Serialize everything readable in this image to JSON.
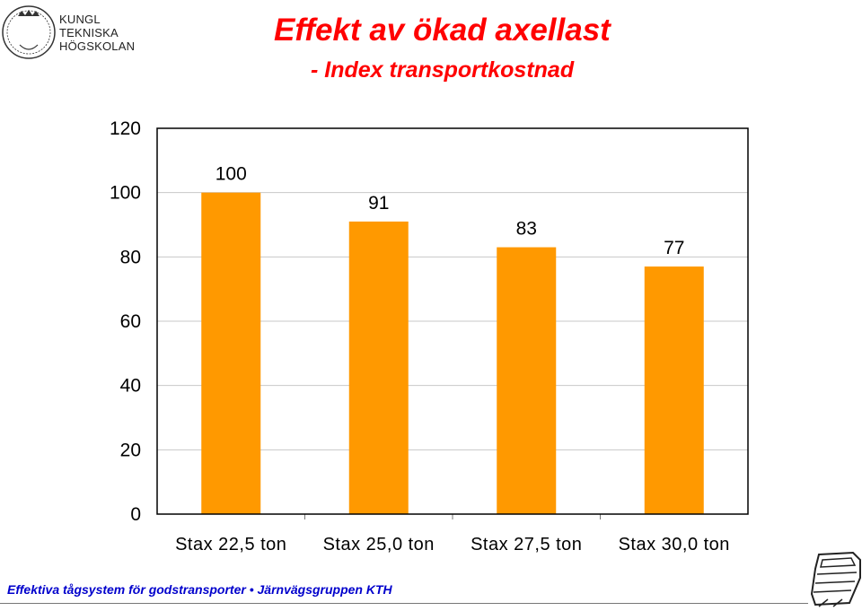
{
  "logo": {
    "seal_text": "VETENSKAP OCH KONST",
    "name_lines": [
      "KUNGL",
      "TEKNISKA",
      "HÖGSKOLAN"
    ]
  },
  "header": {
    "title": "Effekt av ökad axellast",
    "subtitle": "- Index transportkostnad"
  },
  "footer": {
    "text": "Effektiva tågsystem för godstransporter • Järnvägsgruppen  KTH"
  },
  "colors": {
    "bar": "#ff9900",
    "title": "#ff0000",
    "footer": "#0000cc"
  },
  "chart_data": {
    "type": "bar",
    "title": "",
    "xlabel": "",
    "ylabel": "",
    "categories": [
      "Stax 22,5 ton",
      "Stax 25,0 ton",
      "Stax 27,5 ton",
      "Stax 30,0 ton"
    ],
    "values": [
      100,
      91,
      83,
      77
    ],
    "data_labels": [
      "100",
      "91",
      "83",
      "77"
    ],
    "ylim": [
      0,
      120
    ],
    "yticks": [
      0,
      20,
      40,
      60,
      80,
      100,
      120
    ],
    "grid": true,
    "legend": "none"
  }
}
